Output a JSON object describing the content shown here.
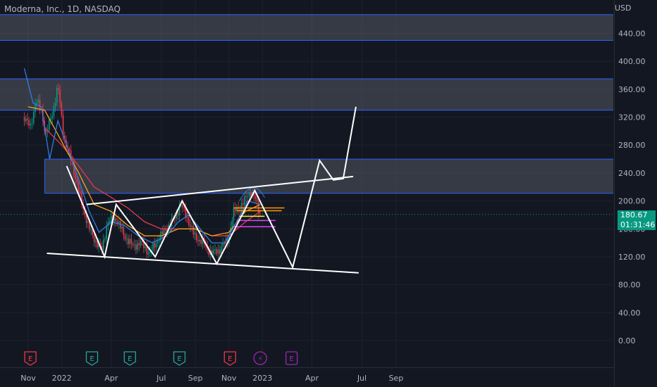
{
  "header": {
    "title": "Moderna, Inc., 1D, NASDAQ"
  },
  "price_axis": {
    "currency": "USD"
  },
  "last_price": {
    "value": "180.67",
    "countdown": "01:31:46",
    "color": "#089981"
  },
  "colors": {
    "up": "#089981",
    "down": "#f23645",
    "zone_border": "#2962ff",
    "zone_fill": "#787b86",
    "earnings_red": "#f23645",
    "earnings_teal": "#26a69a",
    "dividend_purple": "#9c27b0"
  },
  "chart_data": {
    "type": "line",
    "symbol": "Moderna, Inc.",
    "interval": "1D",
    "exchange": "NASDAQ",
    "y_ticks": [
      "0.00",
      "40.00",
      "80.00",
      "120.00",
      "160.00",
      "200.00",
      "240.00",
      "280.00",
      "320.00",
      "360.00",
      "400.00",
      "440.00"
    ],
    "x_ticks": [
      "Nov",
      "2022",
      "Apr",
      "Jul",
      "Sep",
      "Nov",
      "2023",
      "Apr",
      "Jul",
      "Sep"
    ],
    "ylim": [
      -30,
      470
    ],
    "last_price": 180.67,
    "resistance_zones": [
      {
        "low": 430,
        "high": 467
      },
      {
        "low": 330,
        "high": 375
      },
      {
        "low": 211,
        "high": 260
      }
    ],
    "price_path": {
      "x": [
        "2021-10-25",
        "2021-11-05",
        "2021-11-15",
        "2021-11-25",
        "2021-12-03",
        "2021-12-15",
        "2021-12-25",
        "2022-01-05",
        "2022-01-20",
        "2022-02-05",
        "2022-02-20",
        "2022-03-05",
        "2022-03-15",
        "2022-03-25",
        "2022-04-10",
        "2022-04-25",
        "2022-05-10",
        "2022-05-25",
        "2022-06-10",
        "2022-06-25",
        "2022-07-10",
        "2022-07-25",
        "2022-08-05",
        "2022-08-15",
        "2022-08-30",
        "2022-09-15",
        "2022-09-30",
        "2022-10-15",
        "2022-10-30",
        "2022-11-10",
        "2022-11-25",
        "2022-12-10",
        "2022-12-20",
        "2022-12-28"
      ],
      "y": [
        320,
        305,
        345,
        330,
        295,
        325,
        365,
        290,
        255,
        200,
        160,
        140,
        130,
        170,
        175,
        150,
        135,
        140,
        125,
        145,
        160,
        175,
        195,
        180,
        150,
        140,
        125,
        130,
        145,
        185,
        195,
        215,
        200,
        181
      ]
    },
    "ema_fast": {
      "x": [
        "2021-10-25",
        "2021-11-10",
        "2021-11-25",
        "2021-12-10",
        "2021-12-25",
        "2022-01-10",
        "2022-02-01",
        "2022-02-20",
        "2022-03-10",
        "2022-04-01",
        "2022-04-25",
        "2022-05-20",
        "2022-06-15",
        "2022-07-10",
        "2022-08-01",
        "2022-08-20",
        "2022-09-10",
        "2022-10-01",
        "2022-10-25",
        "2022-11-15",
        "2022-12-05",
        "2022-12-28"
      ],
      "y": [
        390,
        340,
        335,
        260,
        315,
        280,
        230,
        185,
        155,
        170,
        165,
        150,
        140,
        150,
        170,
        180,
        160,
        140,
        140,
        170,
        200,
        195
      ]
    },
    "ema_mid": {
      "x": [
        "2021-11-01",
        "2021-12-01",
        "2022-01-01",
        "2022-02-01",
        "2022-03-01",
        "2022-04-01",
        "2022-05-01",
        "2022-06-01",
        "2022-07-01",
        "2022-08-01",
        "2022-09-01",
        "2022-10-01",
        "2022-11-01",
        "2022-12-01",
        "2022-12-28"
      ],
      "y": [
        335,
        330,
        285,
        240,
        195,
        185,
        165,
        150,
        150,
        160,
        160,
        150,
        155,
        185,
        195
      ]
    },
    "ema_slow": {
      "x": [
        "2021-12-01",
        "2022-01-01",
        "2022-02-01",
        "2022-03-01",
        "2022-04-01",
        "2022-05-01",
        "2022-06-01",
        "2022-07-01",
        "2022-08-01",
        "2022-09-01",
        "2022-10-01",
        "2022-11-01",
        "2022-12-01",
        "2022-12-28"
      ],
      "y": [
        305,
        280,
        250,
        220,
        205,
        190,
        170,
        160,
        160,
        160,
        150,
        150,
        170,
        185
      ]
    },
    "support_trendline": {
      "x": [
        "2021-12-05",
        "2023-06-25"
      ],
      "y": [
        125,
        97
      ]
    },
    "resistance_trendline": {
      "x": [
        "2022-02-15",
        "2023-06-15"
      ],
      "y": [
        195,
        235
      ]
    },
    "pattern_zigzag": {
      "x": [
        "2022-01-10",
        "2022-03-20",
        "2022-04-10",
        "2022-06-20",
        "2022-08-08",
        "2022-10-10",
        "2022-12-18",
        "2023-02-25",
        "2023-04-15",
        "2023-05-10",
        "2023-05-28",
        "2023-06-20"
      ],
      "y": [
        250,
        120,
        195,
        120,
        200,
        110,
        215,
        105,
        258,
        230,
        232,
        335
      ]
    },
    "level_lines": [
      {
        "from": "2022-11-10",
        "to": "2023-02-10",
        "y": 190,
        "color": "#ff9800"
      },
      {
        "from": "2022-11-15",
        "to": "2023-02-05",
        "y": 186,
        "color": "#ff9800"
      },
      {
        "from": "2022-11-20",
        "to": "2023-01-05",
        "y": 178,
        "color": "#ffeb3b"
      },
      {
        "from": "2022-12-20",
        "to": "2023-01-05",
        "y": 172,
        "color": "#4caf50"
      },
      {
        "from": "2022-11-15",
        "to": "2023-01-25",
        "y": 172,
        "color": "#e040fb"
      },
      {
        "from": "2022-11-10",
        "to": "2023-01-25",
        "y": 163,
        "color": "#e040fb"
      }
    ],
    "event_markers": [
      {
        "x": "2021-11-05",
        "label": "E",
        "color": "#f23645"
      },
      {
        "x": "2022-02-25",
        "label": "E",
        "color": "#26a69a"
      },
      {
        "x": "2022-05-05",
        "label": "E",
        "color": "#26a69a"
      },
      {
        "x": "2022-08-03",
        "label": "E",
        "color": "#26a69a"
      },
      {
        "x": "2022-11-03",
        "label": "E",
        "color": "#f23645"
      },
      {
        "x": "2022-12-28",
        "label": "⚡",
        "color": "#9c27b0"
      },
      {
        "x": "2023-02-23",
        "label": "E",
        "color": "#9c27b0"
      }
    ]
  }
}
